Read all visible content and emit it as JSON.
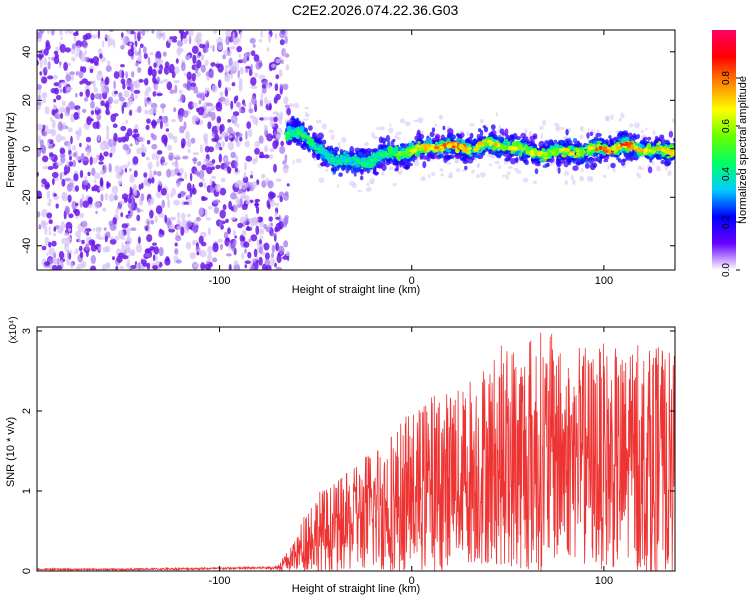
{
  "page": {
    "title": "C2E2.2026.074.22.36.G03"
  },
  "chart_data": [
    {
      "type": "heatmap",
      "title": "",
      "xlabel": "Height of straight line (km)",
      "ylabel": "Frequency (Hz)",
      "xlim": [
        -195,
        137
      ],
      "ylim": [
        -50,
        49
      ],
      "xticks": [
        -100,
        0,
        100
      ],
      "xtick_labels": [
        "-100",
        "0",
        "100"
      ],
      "yticks": [
        -40,
        -20,
        0,
        20,
        40
      ],
      "ytick_labels": [
        "-40",
        "-20",
        "0",
        "20",
        "40"
      ],
      "colorbar": {
        "label": "Normalized spectral amplitude",
        "range": [
          0,
          1
        ],
        "ticks": [
          0.0,
          0.2,
          0.4,
          0.6,
          0.8
        ],
        "tick_labels": [
          "0.0",
          "0.2",
          "0.4",
          "0.6",
          "0.8"
        ],
        "colors": [
          "#ffffff",
          "#6600ff",
          "#0000ff",
          "#00ccff",
          "#00ff66",
          "#66ff00",
          "#ffff00",
          "#ff8800",
          "#ff0000",
          "#ff0066"
        ]
      },
      "signal_onset_km": -65,
      "ridge": {
        "x": [
          -65,
          -58,
          -50,
          -40,
          -30,
          -20,
          -10,
          0,
          10,
          20,
          30,
          40,
          50,
          60,
          70,
          80,
          90,
          100,
          110,
          120,
          130,
          137
        ],
        "y": [
          6,
          8,
          0,
          -4,
          -6,
          -4,
          -2,
          -1,
          1,
          1,
          0,
          2,
          1,
          -1,
          -2,
          -1,
          -1,
          0,
          1,
          0,
          -1,
          -1
        ],
        "peak_amplitude": [
          0.45,
          0.5,
          0.45,
          0.4,
          0.4,
          0.45,
          0.5,
          0.6,
          0.75,
          0.85,
          0.7,
          0.7,
          0.65,
          0.6,
          0.65,
          0.65,
          0.7,
          0.8,
          0.85,
          0.75,
          0.7,
          0.65
        ]
      }
    },
    {
      "type": "line",
      "title": "",
      "xlabel": "Height of straight line (km)",
      "ylabel": "SNR (10 * v/v)",
      "scale_label": "(x10⁴)",
      "color": "#ee3333",
      "xlim": [
        -195,
        137
      ],
      "ylim": [
        0,
        3.05
      ],
      "xticks": [
        -100,
        0,
        100
      ],
      "xtick_labels": [
        "-100",
        "0",
        "100"
      ],
      "yticks": [
        0,
        1,
        2,
        3
      ],
      "ytick_labels": [
        "0",
        "1",
        "2",
        "3"
      ],
      "envelope": {
        "x": [
          -195,
          -150,
          -100,
          -70,
          -60,
          -55,
          -50,
          -40,
          -30,
          -20,
          -10,
          0,
          10,
          20,
          30,
          40,
          50,
          60,
          70,
          80,
          90,
          100,
          110,
          120,
          130,
          137
        ],
        "mean": [
          0.02,
          0.02,
          0.03,
          0.04,
          0.12,
          0.25,
          0.35,
          0.45,
          0.55,
          0.65,
          0.75,
          0.9,
          1.1,
          1.25,
          1.35,
          1.45,
          1.55,
          1.55,
          1.6,
          1.55,
          1.5,
          1.5,
          1.45,
          1.45,
          1.4,
          1.4
        ],
        "max": [
          0.04,
          0.05,
          0.06,
          0.08,
          0.4,
          0.85,
          1.0,
          1.1,
          1.3,
          1.6,
          1.8,
          2.0,
          2.2,
          2.3,
          2.5,
          2.7,
          2.9,
          3.0,
          3.05,
          2.8,
          2.8,
          2.85,
          2.75,
          2.85,
          2.8,
          2.7
        ]
      }
    }
  ]
}
